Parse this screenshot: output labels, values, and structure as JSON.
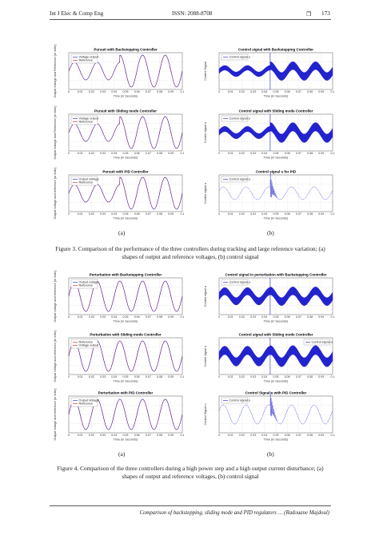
{
  "header": {
    "journal": "Int J Elec & Comp Eng",
    "issn": "ISSN: 2088-8708",
    "box": "❒",
    "page": "173"
  },
  "figure3": {
    "caption": "Figure 3. Comparison of the performance of the three controllers during tracking and large reference variation; (a) shapes of output and reference voltages, (b) control signal",
    "label_a": "(a)",
    "label_b": "(b)"
  },
  "figure4": {
    "caption": "Figure 4. Comparison of the three controllers during a high power step and a high output current disturbance; (a) shapes of output and reference voltages, (b) control signal",
    "label_a": "(a)",
    "label_b": "(b)"
  },
  "footer": {
    "text": "Comparison of backstepping, sliding mode and PID regulators … (Radouane Majdoul)"
  },
  "colors": {
    "output": "#1a1acc",
    "reference": "#cc1a1a"
  },
  "chart_data": [
    {
      "id": "f3a1",
      "type": "line",
      "title": "Pursuit with Backstepping Controller",
      "xlabel": "Time (in Seconds)",
      "ylabel": "Output Voltage and Reference (in Volts)",
      "xlim": [
        0,
        0.1
      ],
      "x_ticks": [
        "0",
        "0.01",
        "0.02",
        "0.03",
        "0.04",
        "0.05",
        "0.06",
        "0.07",
        "0.08",
        "0.09",
        "0.1"
      ],
      "series": [
        {
          "name": "Voltage output"
        },
        {
          "name": "Reference"
        }
      ],
      "legend": "top-left",
      "signal": {
        "kind": "voltage",
        "freq_hz": 50,
        "amp_before": 0.55,
        "amp_after": 1.0,
        "step_time": 0.045
      }
    },
    {
      "id": "f3a2",
      "type": "line",
      "title": "Pursuit with Sliding mode Controller",
      "xlabel": "Time (in Seconds)",
      "ylabel": "Output Voltage and Reference (in Volts)",
      "xlim": [
        0,
        0.1
      ],
      "x_ticks": [
        "0",
        "0.01",
        "0.02",
        "0.03",
        "0.04",
        "0.05",
        "0.06",
        "0.07",
        "0.08",
        "0.09",
        "0.1"
      ],
      "series": [
        {
          "name": "Voltage output"
        },
        {
          "name": "Reference"
        }
      ],
      "legend": "top-left",
      "signal": {
        "kind": "voltage",
        "freq_hz": 50,
        "amp_before": 0.55,
        "amp_after": 1.0,
        "step_time": 0.045
      }
    },
    {
      "id": "f3a3",
      "type": "line",
      "title": "Pursuit with PID Controller",
      "xlabel": "Time (in Seconds)",
      "ylabel": "Output voltage and reference (in Volts)",
      "xlim": [
        0,
        0.1
      ],
      "x_ticks": [
        "0",
        "0.01",
        "0.02",
        "0.03",
        "0.04",
        "0.05",
        "0.06",
        "0.07",
        "0.08",
        "0.09",
        "0.1"
      ],
      "series": [
        {
          "name": "Output Voltage"
        },
        {
          "name": "Reference"
        }
      ],
      "legend": "top-left",
      "signal": {
        "kind": "voltage",
        "freq_hz": 50,
        "amp_before": 0.55,
        "amp_after": 1.0,
        "step_time": 0.045
      }
    },
    {
      "id": "f3b1",
      "type": "line",
      "title": "Control signal with Backstepping Controller",
      "xlabel": "Time (in Seconds)",
      "ylabel": "Control Signal",
      "xlim": [
        0,
        0.1
      ],
      "x_ticks": [
        "0",
        "0.01",
        "0.02",
        "0.03",
        "0.04",
        "0.05",
        "0.06",
        "0.07",
        "0.08",
        "0.09",
        "0.1"
      ],
      "series": [
        {
          "name": "Control signal u"
        }
      ],
      "legend": "top-left",
      "signal": {
        "kind": "control",
        "freq_hz": 50,
        "env_before": 0.45,
        "env_after": 0.75,
        "step_time": 0.045
      }
    },
    {
      "id": "f3b2",
      "type": "line",
      "title": "Control signal with Sliding mode Controller",
      "xlabel": "Time (in Seconds)",
      "ylabel": "Control signal u",
      "xlim": [
        0,
        0.1
      ],
      "x_ticks": [
        "0",
        "0.01",
        "0.02",
        "0.03",
        "0.04",
        "0.05",
        "0.06",
        "0.07",
        "0.08",
        "0.09",
        "0.1"
      ],
      "series": [
        {
          "name": "Control signal u"
        }
      ],
      "legend": "top-left",
      "signal": {
        "kind": "control",
        "freq_hz": 50,
        "env_before": 0.5,
        "env_after": 0.8,
        "step_time": 0.045
      }
    },
    {
      "id": "f3b3",
      "type": "line",
      "title": "Control signal u for PID",
      "xlabel": "Time (in Seconds)",
      "ylabel": "Control signal u",
      "xlim": [
        0,
        0.1
      ],
      "x_ticks": [
        "0",
        "0.01",
        "0.02",
        "0.03",
        "0.04",
        "0.05",
        "0.06",
        "0.07",
        "0.08",
        "0.09",
        "0.1"
      ],
      "series": [
        {
          "name": "Control signal u"
        }
      ],
      "legend": "top-left",
      "signal": {
        "kind": "pid",
        "freq_hz": 50,
        "amp": 0.4,
        "step_time": 0.045
      }
    },
    {
      "id": "f4a1",
      "type": "line",
      "title": "Perturbation with Backstepping Controller",
      "xlabel": "Time (in Seconds)",
      "ylabel": "Output voltage and reference (in Volts)",
      "xlim": [
        0,
        0.1
      ],
      "x_ticks": [
        "0",
        "0.01",
        "0.02",
        "0.03",
        "0.04",
        "0.05",
        "0.06",
        "0.07",
        "0.08",
        "0.09",
        "0.1"
      ],
      "series": [
        {
          "name": "Output voltage"
        },
        {
          "name": "Reference"
        }
      ],
      "legend": "top-left",
      "signal": {
        "kind": "voltage",
        "freq_hz": 50,
        "amp_before": 0.95,
        "amp_after": 0.95,
        "step_time": 0.045
      }
    },
    {
      "id": "f4a2",
      "type": "line",
      "title": "Perturbation with Sliding mode Controller",
      "xlabel": "Time (in Seconds)",
      "ylabel": "Output voltage and reference (in Volts)",
      "xlim": [
        0,
        0.1
      ],
      "x_ticks": [
        "0",
        "0.01",
        "0.02",
        "0.03",
        "0.04",
        "0.05",
        "0.06",
        "0.07",
        "0.08",
        "0.09",
        "0.1"
      ],
      "series": [
        {
          "name": "Reference"
        },
        {
          "name": "Voltage output"
        }
      ],
      "legend": "top-left",
      "signal": {
        "kind": "voltage",
        "freq_hz": 50,
        "amp_before": 0.95,
        "amp_after": 0.95,
        "step_time": 0.045
      }
    },
    {
      "id": "f4a3",
      "type": "line",
      "title": "Perturbation with PID Controller",
      "xlabel": "Time (in Seconds)",
      "ylabel": "Output voltage and reference (in Volts)",
      "xlim": [
        0,
        0.1
      ],
      "x_ticks": [
        "0",
        "0.01",
        "0.02",
        "0.03",
        "0.04",
        "0.05",
        "0.06",
        "0.07",
        "0.08",
        "0.09",
        "0.1"
      ],
      "series": [
        {
          "name": "Output Voltage"
        },
        {
          "name": "Reference"
        }
      ],
      "legend": "top-left",
      "signal": {
        "kind": "voltage",
        "freq_hz": 50,
        "amp_before": 0.95,
        "amp_after": 0.95,
        "step_time": 0.045
      }
    },
    {
      "id": "f4b1",
      "type": "line",
      "title": "Control signal in perturbation with Backstepping Controller",
      "xlabel": "Time (in Seconds)",
      "ylabel": "Control signal u",
      "xlim": [
        0,
        0.1
      ],
      "x_ticks": [
        "0",
        "0.01",
        "0.02",
        "0.03",
        "0.04",
        "0.05",
        "0.06",
        "0.07",
        "0.08",
        "0.09",
        "0.1"
      ],
      "series": [
        {
          "name": "Control signal u"
        }
      ],
      "legend": "top-left",
      "signal": {
        "kind": "control",
        "freq_hz": 50,
        "env_before": 0.7,
        "env_after": 0.75,
        "step_time": 0.045
      }
    },
    {
      "id": "f4b2",
      "type": "line",
      "title": "Control signal with Sliding mode Controller",
      "xlabel": "Time (in Seconds)",
      "ylabel": "Control signal u",
      "xlim": [
        0,
        0.1
      ],
      "x_ticks": [
        "0",
        "0.01",
        "0.02",
        "0.03",
        "0.04",
        "0.05",
        "0.06",
        "0.07",
        "0.08",
        "0.09",
        "0.1"
      ],
      "series": [
        {
          "name": "Control signal u"
        }
      ],
      "legend": "top-right",
      "signal": {
        "kind": "control",
        "freq_hz": 50,
        "env_before": 0.8,
        "env_after": 0.85,
        "step_time": 0.045
      }
    },
    {
      "id": "f4b3",
      "type": "line",
      "title": "Control Signal u with PID Controller",
      "xlabel": "Time (in Seconds)",
      "ylabel": "Control Signal u",
      "xlim": [
        0,
        0.1
      ],
      "x_ticks": [
        "0",
        "0.01",
        "0.02",
        "0.03",
        "0.04",
        "0.05",
        "0.06",
        "0.07",
        "0.08",
        "0.09",
        "0.1"
      ],
      "series": [
        {
          "name": "Control signal u"
        }
      ],
      "legend": "top-left",
      "signal": {
        "kind": "pid",
        "freq_hz": 50,
        "amp": 0.6,
        "step_time": 0.045
      }
    }
  ]
}
